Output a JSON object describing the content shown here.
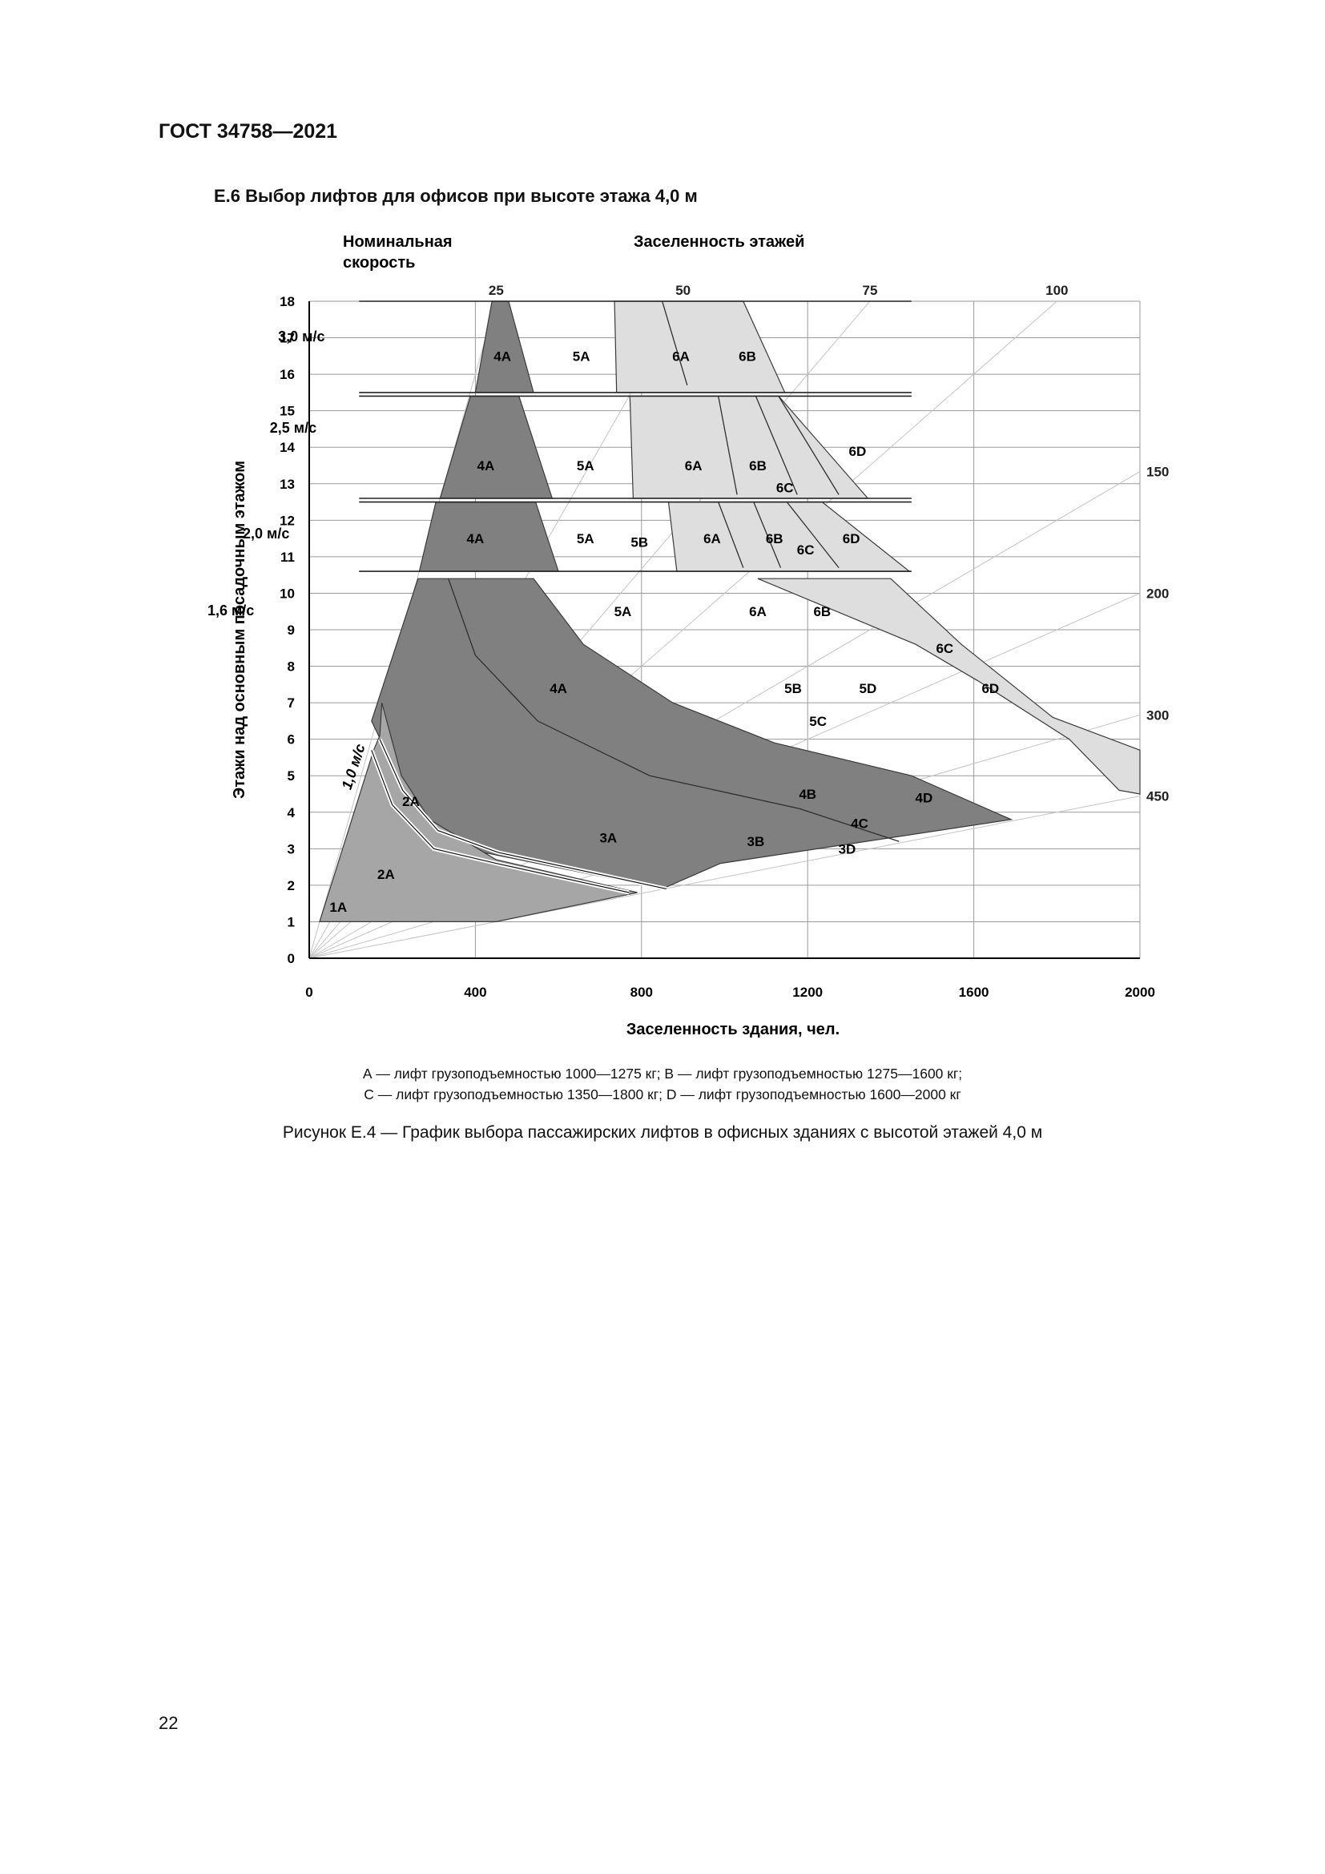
{
  "document": {
    "header": "ГОСТ 34758—2021",
    "section_title": "E.6  Выбор лифтов для офисов при высоте этажа 4,0 м",
    "legend": [
      "А — лифт грузоподъемностью 1000—1275 кг; В — лифт грузоподъемностью 1275—1600 кг;",
      "С — лифт грузоподъемностью 1350—1800 кг; D — лифт грузоподъемностью 1600—2000 кг"
    ],
    "caption": "Рисунок Е.4 — График выбора пассажирских лифтов в офисных зданиях с высотой этажей 4,0 м",
    "page_number": "22"
  },
  "chart_data": {
    "type": "area",
    "title": "",
    "header_left": [
      "Номинальная",
      "скорость"
    ],
    "header_top": "Заселенность этажей",
    "xlabel": "Заселенность здания, чел.",
    "ylabel": "Этажи над основным посадочным этажом",
    "xlim": [
      0,
      2000
    ],
    "ylim": [
      0,
      18
    ],
    "x_ticks": [
      0,
      400,
      800,
      1200,
      1600,
      2000
    ],
    "y_ticks": [
      0,
      1,
      2,
      3,
      4,
      5,
      6,
      7,
      8,
      9,
      10,
      11,
      12,
      13,
      14,
      15,
      16,
      17,
      18
    ],
    "grid": true,
    "colors": {
      "dark": "#808080",
      "mid": "#a6a6a6",
      "light": "#dedede",
      "grid": "#9a9a9a",
      "ray": "#c4c4c4"
    },
    "density_rays": [
      {
        "label": "25",
        "people_per_floor": 25,
        "label_side": "top"
      },
      {
        "label": "50",
        "people_per_floor": 50,
        "label_side": "top"
      },
      {
        "label": "75",
        "people_per_floor": 75,
        "label_side": "top"
      },
      {
        "label": "100",
        "people_per_floor": 100,
        "label_side": "top"
      },
      {
        "label": "150",
        "people_per_floor": 150,
        "label_side": "right"
      },
      {
        "label": "200",
        "people_per_floor": 200,
        "label_side": "right"
      },
      {
        "label": "300",
        "people_per_floor": 300,
        "label_side": "right"
      },
      {
        "label": "450",
        "people_per_floor": 450,
        "label_side": "right"
      }
    ],
    "bands": [
      {
        "speed": "3,0 м/с",
        "floor_range": [
          15.5,
          18
        ],
        "regions": [
          {
            "shade": "dark",
            "points": [
              [
                400,
                15.5
              ],
              [
                540,
                15.5
              ],
              [
                480,
                18
              ],
              [
                440,
                18
              ]
            ]
          },
          {
            "shade": "light",
            "points": [
              [
                740,
                15.5
              ],
              [
                1145,
                15.5
              ],
              [
                1045,
                18
              ],
              [
                735,
                18
              ]
            ]
          }
        ],
        "boundaries": [
          [
            [
              910,
              15.7
            ],
            [
              850,
              18
            ]
          ]
        ],
        "labels": [
          {
            "text": "4А",
            "x": 465,
            "y": 16.5
          },
          {
            "text": "5А",
            "x": 655,
            "y": 16.5
          },
          {
            "text": "6А",
            "x": 895,
            "y": 16.5
          },
          {
            "text": "6В",
            "x": 1055,
            "y": 16.5
          }
        ]
      },
      {
        "speed": "2,5 м/с",
        "floor_range": [
          12.6,
          15.4
        ],
        "regions": [
          {
            "shade": "dark",
            "points": [
              [
                315,
                12.6
              ],
              [
                585,
                12.6
              ],
              [
                505,
                15.4
              ],
              [
                388,
                15.4
              ]
            ]
          },
          {
            "shade": "light",
            "points": [
              [
                780,
                12.6
              ],
              [
                1345,
                12.6
              ],
              [
                1130,
                15.4
              ],
              [
                772,
                15.4
              ]
            ]
          }
        ],
        "boundaries": [
          [
            [
              1030,
              12.7
            ],
            [
              985,
              15.4
            ]
          ],
          [
            [
              1175,
              12.7
            ],
            [
              1075,
              15.4
            ]
          ],
          [
            [
              1275,
              12.7
            ],
            [
              1130,
              15.4
            ]
          ]
        ],
        "labels": [
          {
            "text": "4А",
            "x": 425,
            "y": 13.5
          },
          {
            "text": "5А",
            "x": 665,
            "y": 13.5
          },
          {
            "text": "6А",
            "x": 925,
            "y": 13.5
          },
          {
            "text": "6В",
            "x": 1080,
            "y": 13.5
          },
          {
            "text": "6С",
            "x": 1145,
            "y": 12.9
          },
          {
            "text": "6D",
            "x": 1320,
            "y": 13.9
          }
        ]
      },
      {
        "speed": "2,0 м/с",
        "floor_range": [
          10.6,
          12.5
        ],
        "regions": [
          {
            "shade": "dark",
            "points": [
              [
                265,
                10.6
              ],
              [
                600,
                10.6
              ],
              [
                545,
                12.5
              ],
              [
                305,
                12.5
              ]
            ]
          },
          {
            "shade": "light",
            "points": [
              [
                885,
                10.6
              ],
              [
                1445,
                10.6
              ],
              [
                1235,
                12.5
              ],
              [
                865,
                12.5
              ]
            ]
          }
        ],
        "boundaries": [
          [
            [
              1045,
              10.7
            ],
            [
              985,
              12.5
            ]
          ],
          [
            [
              1135,
              10.7
            ],
            [
              1070,
              12.5
            ]
          ],
          [
            [
              1275,
              10.7
            ],
            [
              1150,
              12.5
            ]
          ]
        ],
        "labels": [
          {
            "text": "4А",
            "x": 400,
            "y": 11.5
          },
          {
            "text": "5А",
            "x": 665,
            "y": 11.5
          },
          {
            "text": "5В",
            "x": 795,
            "y": 11.4
          },
          {
            "text": "6А",
            "x": 970,
            "y": 11.5
          },
          {
            "text": "6В",
            "x": 1120,
            "y": 11.5
          },
          {
            "text": "6С",
            "x": 1195,
            "y": 11.2
          },
          {
            "text": "6D",
            "x": 1305,
            "y": 11.5
          }
        ]
      },
      {
        "speed": "1,6 м/с",
        "floor_range": [
          1.9,
          10.4
        ],
        "regions": [
          {
            "shade": "dark",
            "points": [
              [
                150,
                6.5
              ],
              [
                262,
                10.4
              ],
              [
                540,
                10.4
              ],
              [
                660,
                8.6
              ],
              [
                875,
                7
              ],
              [
                1120,
                5.9
              ],
              [
                1450,
                5
              ],
              [
                1690,
                3.8
              ],
              [
                990,
                2.6
              ],
              [
                850,
                1.9
              ],
              [
                290,
                3.2
              ]
            ]
          },
          {
            "shade": "light",
            "points": [
              [
                1080,
                10.4
              ],
              [
                1400,
                10.4
              ],
              [
                1570,
                8.6
              ],
              [
                1790,
                6.6
              ],
              [
                2000,
                5.7
              ],
              [
                2000,
                4.5
              ],
              [
                1950,
                4.6
              ],
              [
                1830,
                6
              ],
              [
                1610,
                7.6
              ],
              [
                1460,
                8.6
              ]
            ]
          }
        ],
        "boundaries": [
          [
            [
              335,
              10.4
            ],
            [
              400,
              8.3
            ],
            [
              550,
              6.5
            ],
            [
              820,
              5
            ],
            [
              1180,
              4.1
            ],
            [
              1420,
              3.2
            ]
          ]
        ],
        "labels": [
          {
            "text": "4А",
            "x": 600,
            "y": 7.4
          },
          {
            "text": "5А",
            "x": 755,
            "y": 9.5
          },
          {
            "text": "6А",
            "x": 1080,
            "y": 9.5
          },
          {
            "text": "6В",
            "x": 1235,
            "y": 9.5
          },
          {
            "text": "3А",
            "x": 720,
            "y": 3.3
          },
          {
            "text": "3В",
            "x": 1075,
            "y": 3.2
          },
          {
            "text": "3D",
            "x": 1295,
            "y": 3.0
          },
          {
            "text": "4В",
            "x": 1200,
            "y": 4.5
          },
          {
            "text": "4С",
            "x": 1325,
            "y": 3.7
          },
          {
            "text": "4D",
            "x": 1480,
            "y": 4.4
          },
          {
            "text": "5В",
            "x": 1165,
            "y": 7.4
          },
          {
            "text": "5С",
            "x": 1225,
            "y": 6.5
          },
          {
            "text": "5D",
            "x": 1345,
            "y": 7.4
          },
          {
            "text": "6С",
            "x": 1530,
            "y": 8.5
          },
          {
            "text": "6D",
            "x": 1640,
            "y": 7.4
          }
        ]
      },
      {
        "speed": "1,0 м/с",
        "floor_range": [
          1,
          7.1
        ],
        "regions": [
          {
            "shade": "mid",
            "points": [
              [
                25,
                1
              ],
              [
                155,
                5.7
              ],
              [
                170,
                6.1
              ],
              [
                175,
                7
              ],
              [
                222,
                5
              ],
              [
                290,
                3.8
              ],
              [
                450,
                2.7
              ],
              [
                790,
                1.8
              ],
              [
                450,
                1
              ]
            ]
          }
        ],
        "boundaries": [],
        "labels": [
          {
            "text": "1А",
            "x": 70,
            "y": 1.4
          },
          {
            "text": "2А",
            "x": 185,
            "y": 2.3
          },
          {
            "text": "2А",
            "x": 245,
            "y": 4.3
          }
        ]
      }
    ]
  }
}
